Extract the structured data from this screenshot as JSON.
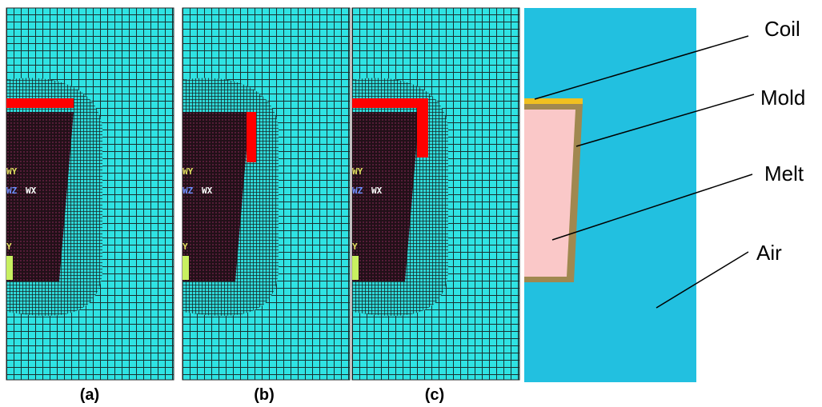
{
  "panels": [
    {
      "label": "(a)"
    },
    {
      "label": "(b)"
    },
    {
      "label": "(c)"
    }
  ],
  "mesh_axis_labels": {
    "wy": "WY",
    "wz": "WZ",
    "wx": "WX",
    "y": "Y"
  },
  "callouts": [
    {
      "label": "Coil"
    },
    {
      "label": "Mold"
    },
    {
      "label": "Melt"
    },
    {
      "label": "Air"
    }
  ]
}
